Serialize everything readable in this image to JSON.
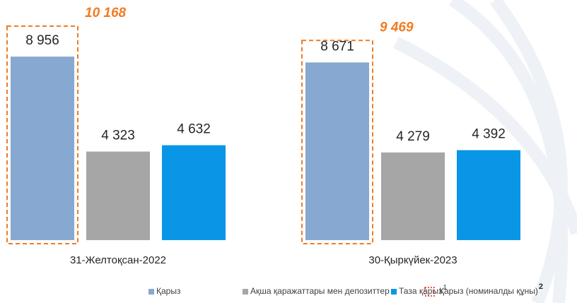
{
  "chart_data": {
    "type": "bar",
    "categories": [
      "31-Желтоқсан-2022",
      "30-Қыркүйек-2023"
    ],
    "series": [
      {
        "name": "Қарыз",
        "color": "#86a8d1",
        "values": [
          8956,
          8671
        ],
        "value_labels": [
          "8 956",
          "8 671"
        ]
      },
      {
        "name": "Ақша қаражаттары мен депозиттер",
        "color": "#a6a6a6",
        "values": [
          4323,
          4279
        ],
        "value_labels": [
          "4 323",
          "4 279"
        ]
      },
      {
        "name": "Таза қарыз",
        "footnote": "1",
        "color": "#0a96e6",
        "values": [
          4632,
          4392
        ],
        "value_labels": [
          "4 632",
          "4 392"
        ]
      }
    ],
    "nominal": {
      "name": "Қарыз (номиналды құны)",
      "footnote": "2",
      "color": "#f07c22",
      "values": [
        10168,
        9469
      ],
      "value_labels": [
        "10 168",
        "9 469"
      ]
    }
  }
}
